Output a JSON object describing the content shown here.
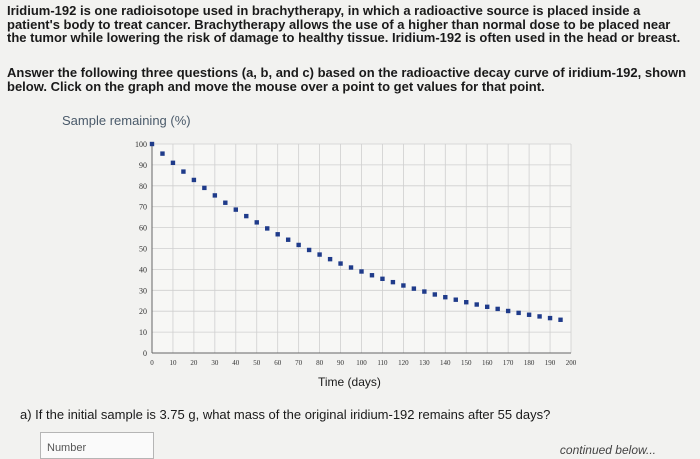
{
  "intro_text": "Iridium-192 is one radioisotope used in brachytherapy, in which a radioactive source is placed inside a patient's body to treat cancer. Brachytherapy allows the use of a higher than normal dose to be placed near the tumor while lowering the risk of damage to healthy tissue. Iridium-192 is often used in the head or breast.",
  "instructions_text": "Answer the following three questions (a, b, and c) based on the radioactive decay curve of iridium-192, shown below. Click on the graph and move the mouse over a point to get values for that point.",
  "question_a": "a) If the initial sample is 3.75 g, what mass of the original iridium-192 remains after 55 days?",
  "answer_placeholder": "Number",
  "continued_text": "continued below...",
  "chart_data": {
    "type": "scatter",
    "ylabel": "Sample remaining (%)",
    "xlabel": "Time (days)",
    "xlim": [
      0,
      200
    ],
    "ylim": [
      0,
      100
    ],
    "xticks": [
      0,
      10,
      20,
      30,
      40,
      50,
      60,
      70,
      80,
      90,
      100,
      110,
      120,
      130,
      140,
      150,
      160,
      170,
      180,
      190,
      200
    ],
    "yticks": [
      0,
      10,
      20,
      30,
      40,
      50,
      60,
      70,
      80,
      90,
      100
    ],
    "grid": true,
    "marker_color": "#1f3b8a",
    "x": [
      0,
      5,
      10,
      15,
      20,
      25,
      30,
      35,
      40,
      45,
      50,
      55,
      60,
      65,
      70,
      75,
      80,
      85,
      90,
      95,
      100,
      105,
      110,
      115,
      120,
      125,
      130,
      135,
      140,
      145,
      150,
      155,
      160,
      165,
      170,
      175,
      180,
      185,
      190,
      195
    ],
    "y": [
      100,
      95.4,
      91.0,
      86.8,
      82.8,
      79.0,
      75.4,
      71.9,
      68.6,
      65.5,
      62.5,
      59.6,
      56.8,
      54.2,
      51.7,
      49.3,
      47.1,
      44.9,
      42.8,
      40.9,
      39.0,
      37.2,
      35.5,
      33.9,
      32.3,
      30.8,
      29.4,
      28.0,
      26.7,
      25.5,
      24.3,
      23.2,
      22.1,
      21.1,
      20.1,
      19.2,
      18.3,
      17.5,
      16.7,
      15.9
    ]
  }
}
